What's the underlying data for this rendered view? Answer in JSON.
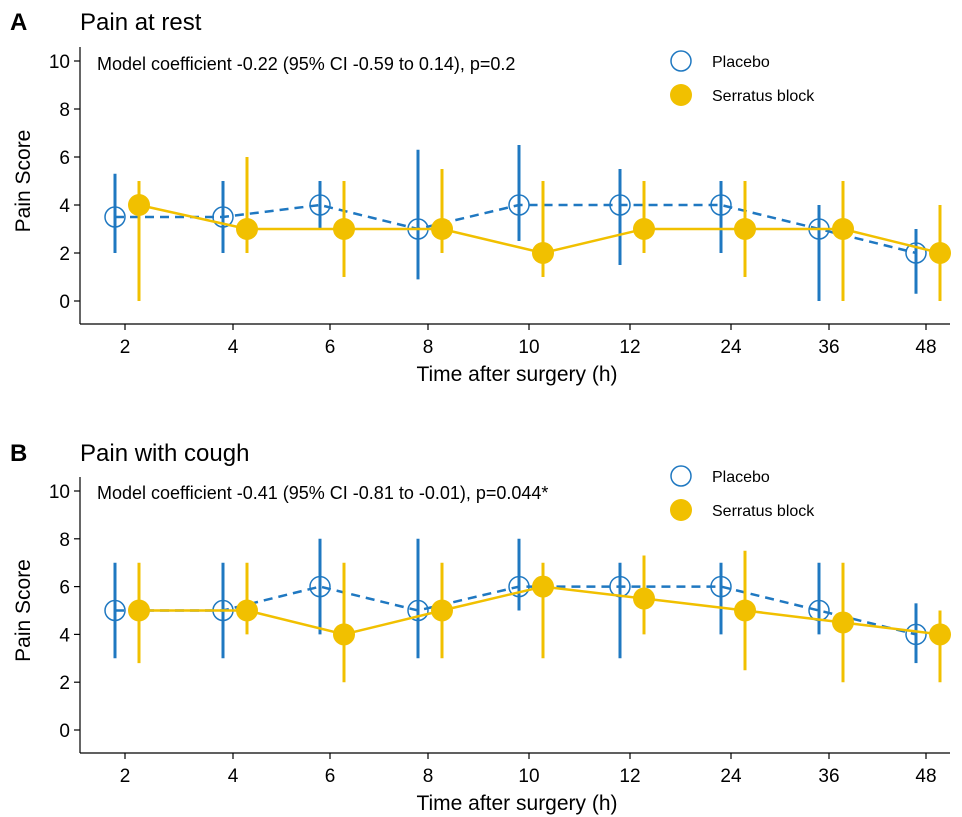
{
  "colors": {
    "placebo": "#1f78c1",
    "serratus": "#f1c000"
  },
  "legend": {
    "placebo": "Placebo",
    "serratus": "Serratus block"
  },
  "chart_data": [
    {
      "type": "line",
      "panel_letter": "A",
      "title": "Pain at rest",
      "annotation": "Model coefficient -0.22 (95% CI -0.59 to 0.14), p=0.2",
      "xlabel": "Time after surgery (h)",
      "ylabel": "Pain Score",
      "categories": [
        "2",
        "4",
        "6",
        "8",
        "10",
        "12",
        "24",
        "36",
        "48"
      ],
      "ylim": [
        0,
        10
      ],
      "yticks": [
        0,
        2,
        4,
        6,
        8,
        10
      ],
      "legend_position": "top-right",
      "grid": false,
      "series": [
        {
          "name": "Placebo",
          "style": "dashed-open-circle",
          "values": [
            3.5,
            3.5,
            4,
            3,
            4,
            4,
            4,
            3,
            2
          ],
          "lower": [
            2,
            2,
            3,
            0.9,
            2.5,
            1.5,
            2,
            0,
            0.3
          ],
          "upper": [
            5.3,
            5,
            5,
            6.3,
            6.5,
            5.5,
            5,
            4,
            3
          ]
        },
        {
          "name": "Serratus block",
          "style": "solid-filled-circle",
          "values": [
            4,
            3,
            3,
            3,
            2,
            3,
            3,
            3,
            2
          ],
          "lower": [
            0,
            2,
            1,
            2,
            1,
            2,
            1,
            0,
            0
          ],
          "upper": [
            5,
            6,
            5,
            5.5,
            5,
            5,
            5,
            5,
            4
          ]
        }
      ]
    },
    {
      "type": "line",
      "panel_letter": "B",
      "title": "Pain with cough",
      "annotation": "Model coefficient -0.41 (95% CI -0.81 to -0.01), p=0.044*",
      "xlabel": "Time after surgery (h)",
      "ylabel": "Pain Score",
      "categories": [
        "2",
        "4",
        "6",
        "8",
        "10",
        "12",
        "24",
        "36",
        "48"
      ],
      "ylim": [
        0,
        10
      ],
      "yticks": [
        0,
        2,
        4,
        6,
        8,
        10
      ],
      "legend_position": "top-right",
      "grid": false,
      "series": [
        {
          "name": "Placebo",
          "style": "dashed-open-circle",
          "values": [
            5,
            5,
            6,
            5,
            6,
            6,
            6,
            5,
            4
          ],
          "lower": [
            3,
            3,
            4,
            3,
            5,
            3,
            4,
            4,
            2.8
          ],
          "upper": [
            7,
            7,
            8,
            8,
            8,
            7,
            7,
            7,
            5.3
          ]
        },
        {
          "name": "Serratus block",
          "style": "solid-filled-circle",
          "values": [
            5,
            5,
            4,
            5,
            6,
            5.5,
            5,
            4.5,
            4
          ],
          "lower": [
            2.8,
            4,
            2,
            3,
            3,
            4,
            2.5,
            2,
            2
          ],
          "upper": [
            7,
            7,
            7,
            7,
            7,
            7.3,
            7.5,
            7,
            5
          ]
        }
      ]
    }
  ]
}
